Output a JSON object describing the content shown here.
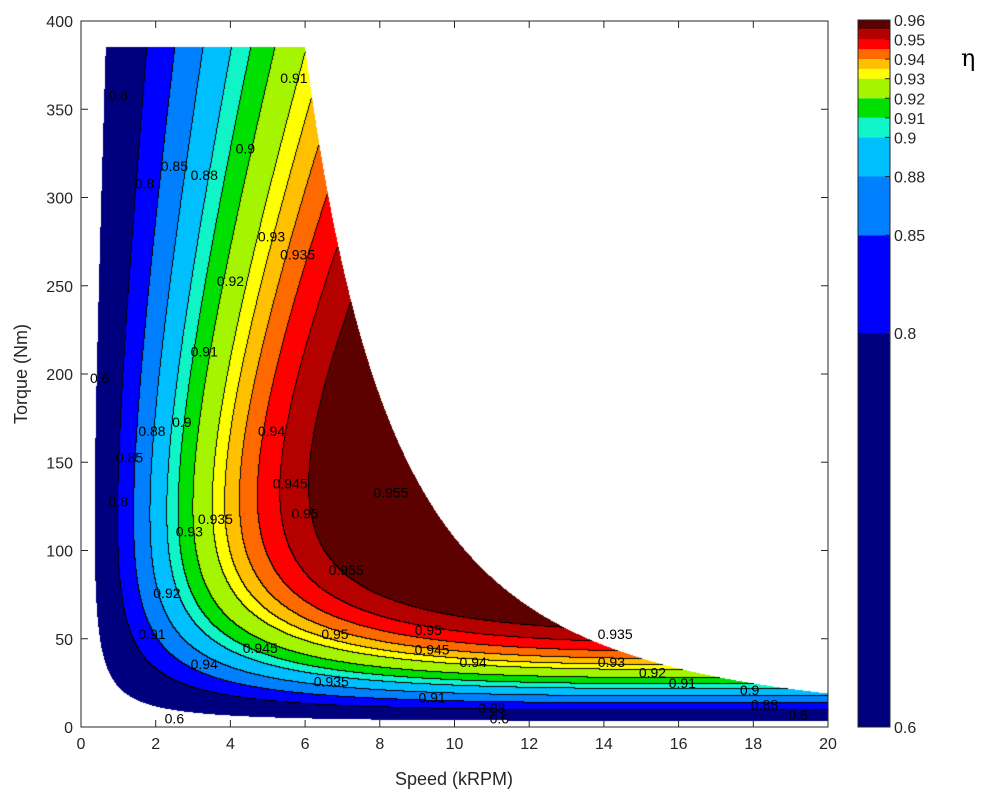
{
  "chart_data": {
    "type": "contour",
    "title": "",
    "xlabel": "Speed (kRPM)",
    "ylabel": "Torque (Nm)",
    "colorbar_label": "η",
    "xlim": [
      0,
      20
    ],
    "ylim": [
      0,
      400
    ],
    "xticks": [
      "0",
      "2",
      "4",
      "6",
      "8",
      "10",
      "12",
      "14",
      "16",
      "18",
      "20"
    ],
    "yticks": [
      "0",
      "50",
      "100",
      "150",
      "200",
      "250",
      "300",
      "350",
      "400"
    ],
    "levels": [
      0.6,
      0.8,
      0.85,
      0.88,
      0.9,
      0.91,
      0.92,
      0.93,
      0.935,
      0.94,
      0.945,
      0.95,
      0.955,
      0.96
    ],
    "colorbar_ticks": [
      "0.6",
      "0.8",
      "0.85",
      "0.88",
      "0.9",
      "0.91",
      "0.92",
      "0.93",
      "0.94",
      "0.95",
      "0.96"
    ],
    "band_colors": [
      "#00007f",
      "#0000ff",
      "#0080ff",
      "#00bfff",
      "#10f5c8",
      "#00e000",
      "#a6f500",
      "#ffff00",
      "#ffc000",
      "#ff6a00",
      "#ff0000",
      "#b50000",
      "#5c0000"
    ],
    "peak_efficiency": 0.96,
    "peak_region": {
      "speed": 8.5,
      "torque": 105
    },
    "max_torque": 385,
    "contour_labels": [
      {
        "text": "0.6",
        "speed": 1.0,
        "torque": 355
      },
      {
        "text": "0.6",
        "speed": 0.5,
        "torque": 195
      },
      {
        "text": "0.6",
        "speed": 2.5,
        "torque": 2
      },
      {
        "text": "0.6",
        "speed": 11.2,
        "torque": 2
      },
      {
        "text": "0.6",
        "speed": 19.2,
        "torque": 4
      },
      {
        "text": "0.8",
        "speed": 1.7,
        "torque": 305
      },
      {
        "text": "0.8",
        "speed": 1.0,
        "torque": 125
      },
      {
        "text": "0.85",
        "speed": 2.5,
        "torque": 315
      },
      {
        "text": "0.85",
        "speed": 1.3,
        "torque": 150
      },
      {
        "text": "0.88",
        "speed": 3.3,
        "torque": 310
      },
      {
        "text": "0.88",
        "speed": 1.9,
        "torque": 165
      },
      {
        "text": "0.88",
        "speed": 11,
        "torque": 8
      },
      {
        "text": "0.88",
        "speed": 18.3,
        "torque": 10
      },
      {
        "text": "0.9",
        "speed": 4.4,
        "torque": 325
      },
      {
        "text": "0.9",
        "speed": 2.7,
        "torque": 170
      },
      {
        "text": "0.9",
        "speed": 17.9,
        "torque": 18
      },
      {
        "text": "0.91",
        "speed": 5.7,
        "torque": 365
      },
      {
        "text": "0.91",
        "speed": 3.3,
        "torque": 210
      },
      {
        "text": "0.91",
        "speed": 1.9,
        "torque": 50
      },
      {
        "text": "0.91",
        "speed": 9.4,
        "torque": 14
      },
      {
        "text": "0.91",
        "speed": 16.1,
        "torque": 22
      },
      {
        "text": "0.92",
        "speed": 4.0,
        "torque": 250
      },
      {
        "text": "0.92",
        "speed": 2.3,
        "torque": 73
      },
      {
        "text": "0.92",
        "speed": 15.3,
        "torque": 28
      },
      {
        "text": "0.93",
        "speed": 5.1,
        "torque": 275
      },
      {
        "text": "0.93",
        "speed": 2.9,
        "torque": 108
      },
      {
        "text": "0.93",
        "speed": 14.2,
        "torque": 34
      },
      {
        "text": "0.935",
        "speed": 5.8,
        "torque": 265
      },
      {
        "text": "0.935",
        "speed": 3.6,
        "torque": 115
      },
      {
        "text": "0.935",
        "speed": 14.3,
        "torque": 50
      },
      {
        "text": "0.935",
        "speed": 6.7,
        "torque": 23
      },
      {
        "text": "0.94",
        "speed": 5.1,
        "torque": 165
      },
      {
        "text": "0.94",
        "speed": 3.3,
        "torque": 33
      },
      {
        "text": "0.94",
        "speed": 10.5,
        "torque": 34
      },
      {
        "text": "0.945",
        "speed": 5.6,
        "torque": 135
      },
      {
        "text": "0.945",
        "speed": 4.8,
        "torque": 42
      },
      {
        "text": "0.945",
        "speed": 9.4,
        "torque": 41
      },
      {
        "text": "0.95",
        "speed": 6.0,
        "torque": 118
      },
      {
        "text": "0.95",
        "speed": 6.8,
        "torque": 50
      },
      {
        "text": "0.95",
        "speed": 9.3,
        "torque": 52
      },
      {
        "text": "0.955",
        "speed": 7.1,
        "torque": 86
      },
      {
        "text": "0.955",
        "speed": 8.3,
        "torque": 130
      }
    ]
  }
}
